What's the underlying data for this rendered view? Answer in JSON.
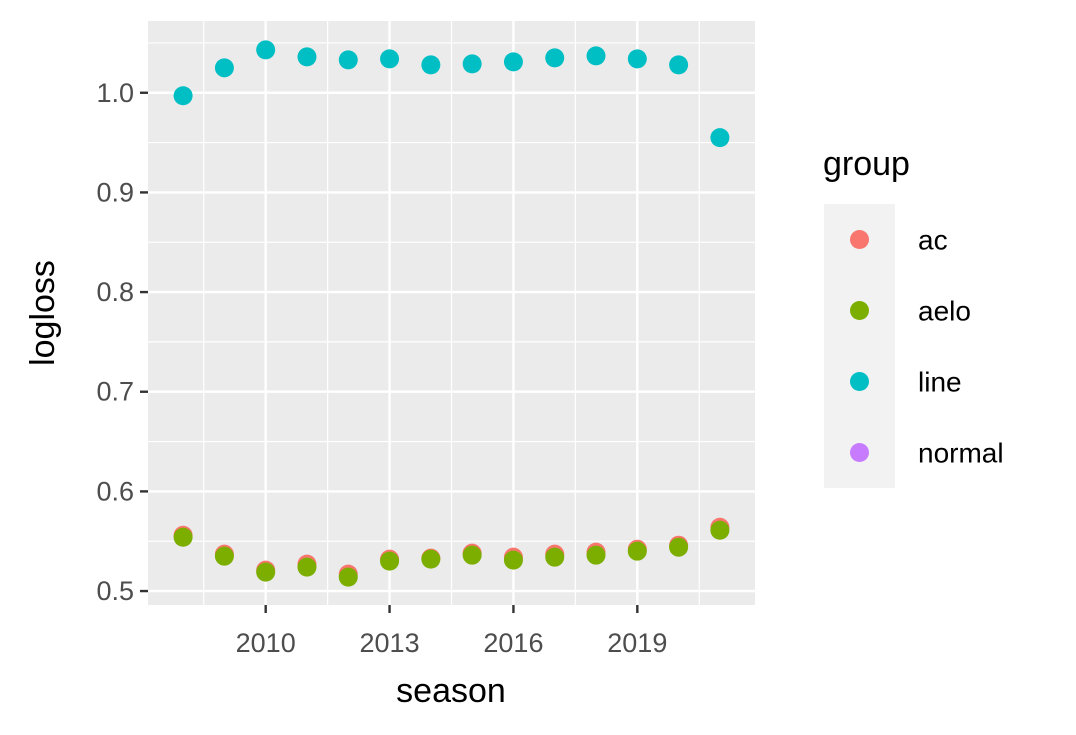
{
  "chart_data": {
    "type": "scatter",
    "title": "",
    "xlabel": "season",
    "ylabel": "logloss",
    "xlim": [
      2007.15,
      2021.85
    ],
    "ylim": [
      0.486,
      1.072
    ],
    "x_ticks": [
      2010,
      2013,
      2016,
      2019
    ],
    "x_tick_labels": [
      "2010",
      "2013",
      "2016",
      "2019"
    ],
    "y_ticks": [
      0.5,
      0.6,
      0.7,
      0.8,
      0.9,
      1.0
    ],
    "y_tick_labels": [
      "0.5",
      "0.6",
      "0.7",
      "0.8",
      "0.9",
      "1.0"
    ],
    "grid": true,
    "legend_position": "right",
    "legend_title": "group",
    "x": [
      2008,
      2009,
      2010,
      2011,
      2012,
      2013,
      2014,
      2015,
      2016,
      2017,
      2018,
      2019,
      2020,
      2021
    ],
    "series": [
      {
        "name": "ac",
        "color": "#F8766D",
        "values": [
          0.556,
          0.537,
          0.521,
          0.527,
          0.517,
          0.532,
          0.533,
          0.538,
          0.534,
          0.537,
          0.539,
          0.542,
          0.546,
          0.564
        ]
      },
      {
        "name": "aelo",
        "color": "#7CAE00",
        "values": [
          0.554,
          0.535,
          0.519,
          0.524,
          0.514,
          0.53,
          0.532,
          0.536,
          0.531,
          0.534,
          0.536,
          0.54,
          0.544,
          0.561
        ]
      },
      {
        "name": "line",
        "color": "#00BFC4",
        "values": [
          0.997,
          1.025,
          1.043,
          1.036,
          1.033,
          1.034,
          1.028,
          1.029,
          1.031,
          1.035,
          1.037,
          1.034,
          1.028,
          0.955
        ]
      },
      {
        "name": "normal",
        "color": "#C77CFF",
        "values": []
      }
    ]
  }
}
